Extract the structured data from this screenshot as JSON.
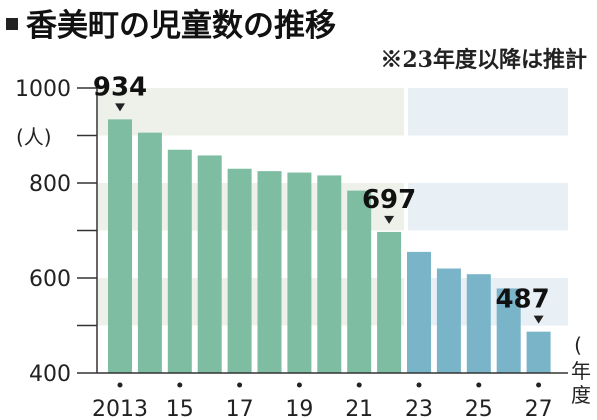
{
  "header": {
    "title": "香美町の児童数の推移",
    "note": "※23年度以降は推計"
  },
  "chart_data": {
    "type": "bar",
    "title": "香美町の児童数の推移",
    "note": "※23年度以降は推計",
    "ylabel": "(人)",
    "xlabel": "年度",
    "ylim": [
      400,
      1000
    ],
    "yticks": [
      400,
      600,
      800,
      1000
    ],
    "x": [
      2013,
      2014,
      2015,
      2016,
      2017,
      2018,
      2019,
      2020,
      2021,
      2022,
      2023,
      2024,
      2025,
      2026,
      2027
    ],
    "xtick_labels": [
      "2013",
      "15",
      "17",
      "19",
      "21",
      "23",
      "25",
      "27"
    ],
    "values": [
      934,
      906,
      870,
      858,
      830,
      825,
      822,
      816,
      784,
      697,
      655,
      620,
      608,
      578,
      487
    ],
    "estimated_from": 2023,
    "annotations": [
      {
        "x": 2013,
        "label": "934"
      },
      {
        "x": 2022,
        "label": "697"
      },
      {
        "x": 2027,
        "label": "487"
      }
    ],
    "colors": {
      "actual": "#7fbda3",
      "estimate": "#79b4c9",
      "band_actual": "#eef1ea",
      "band_estimate": "#e8eff5"
    }
  }
}
